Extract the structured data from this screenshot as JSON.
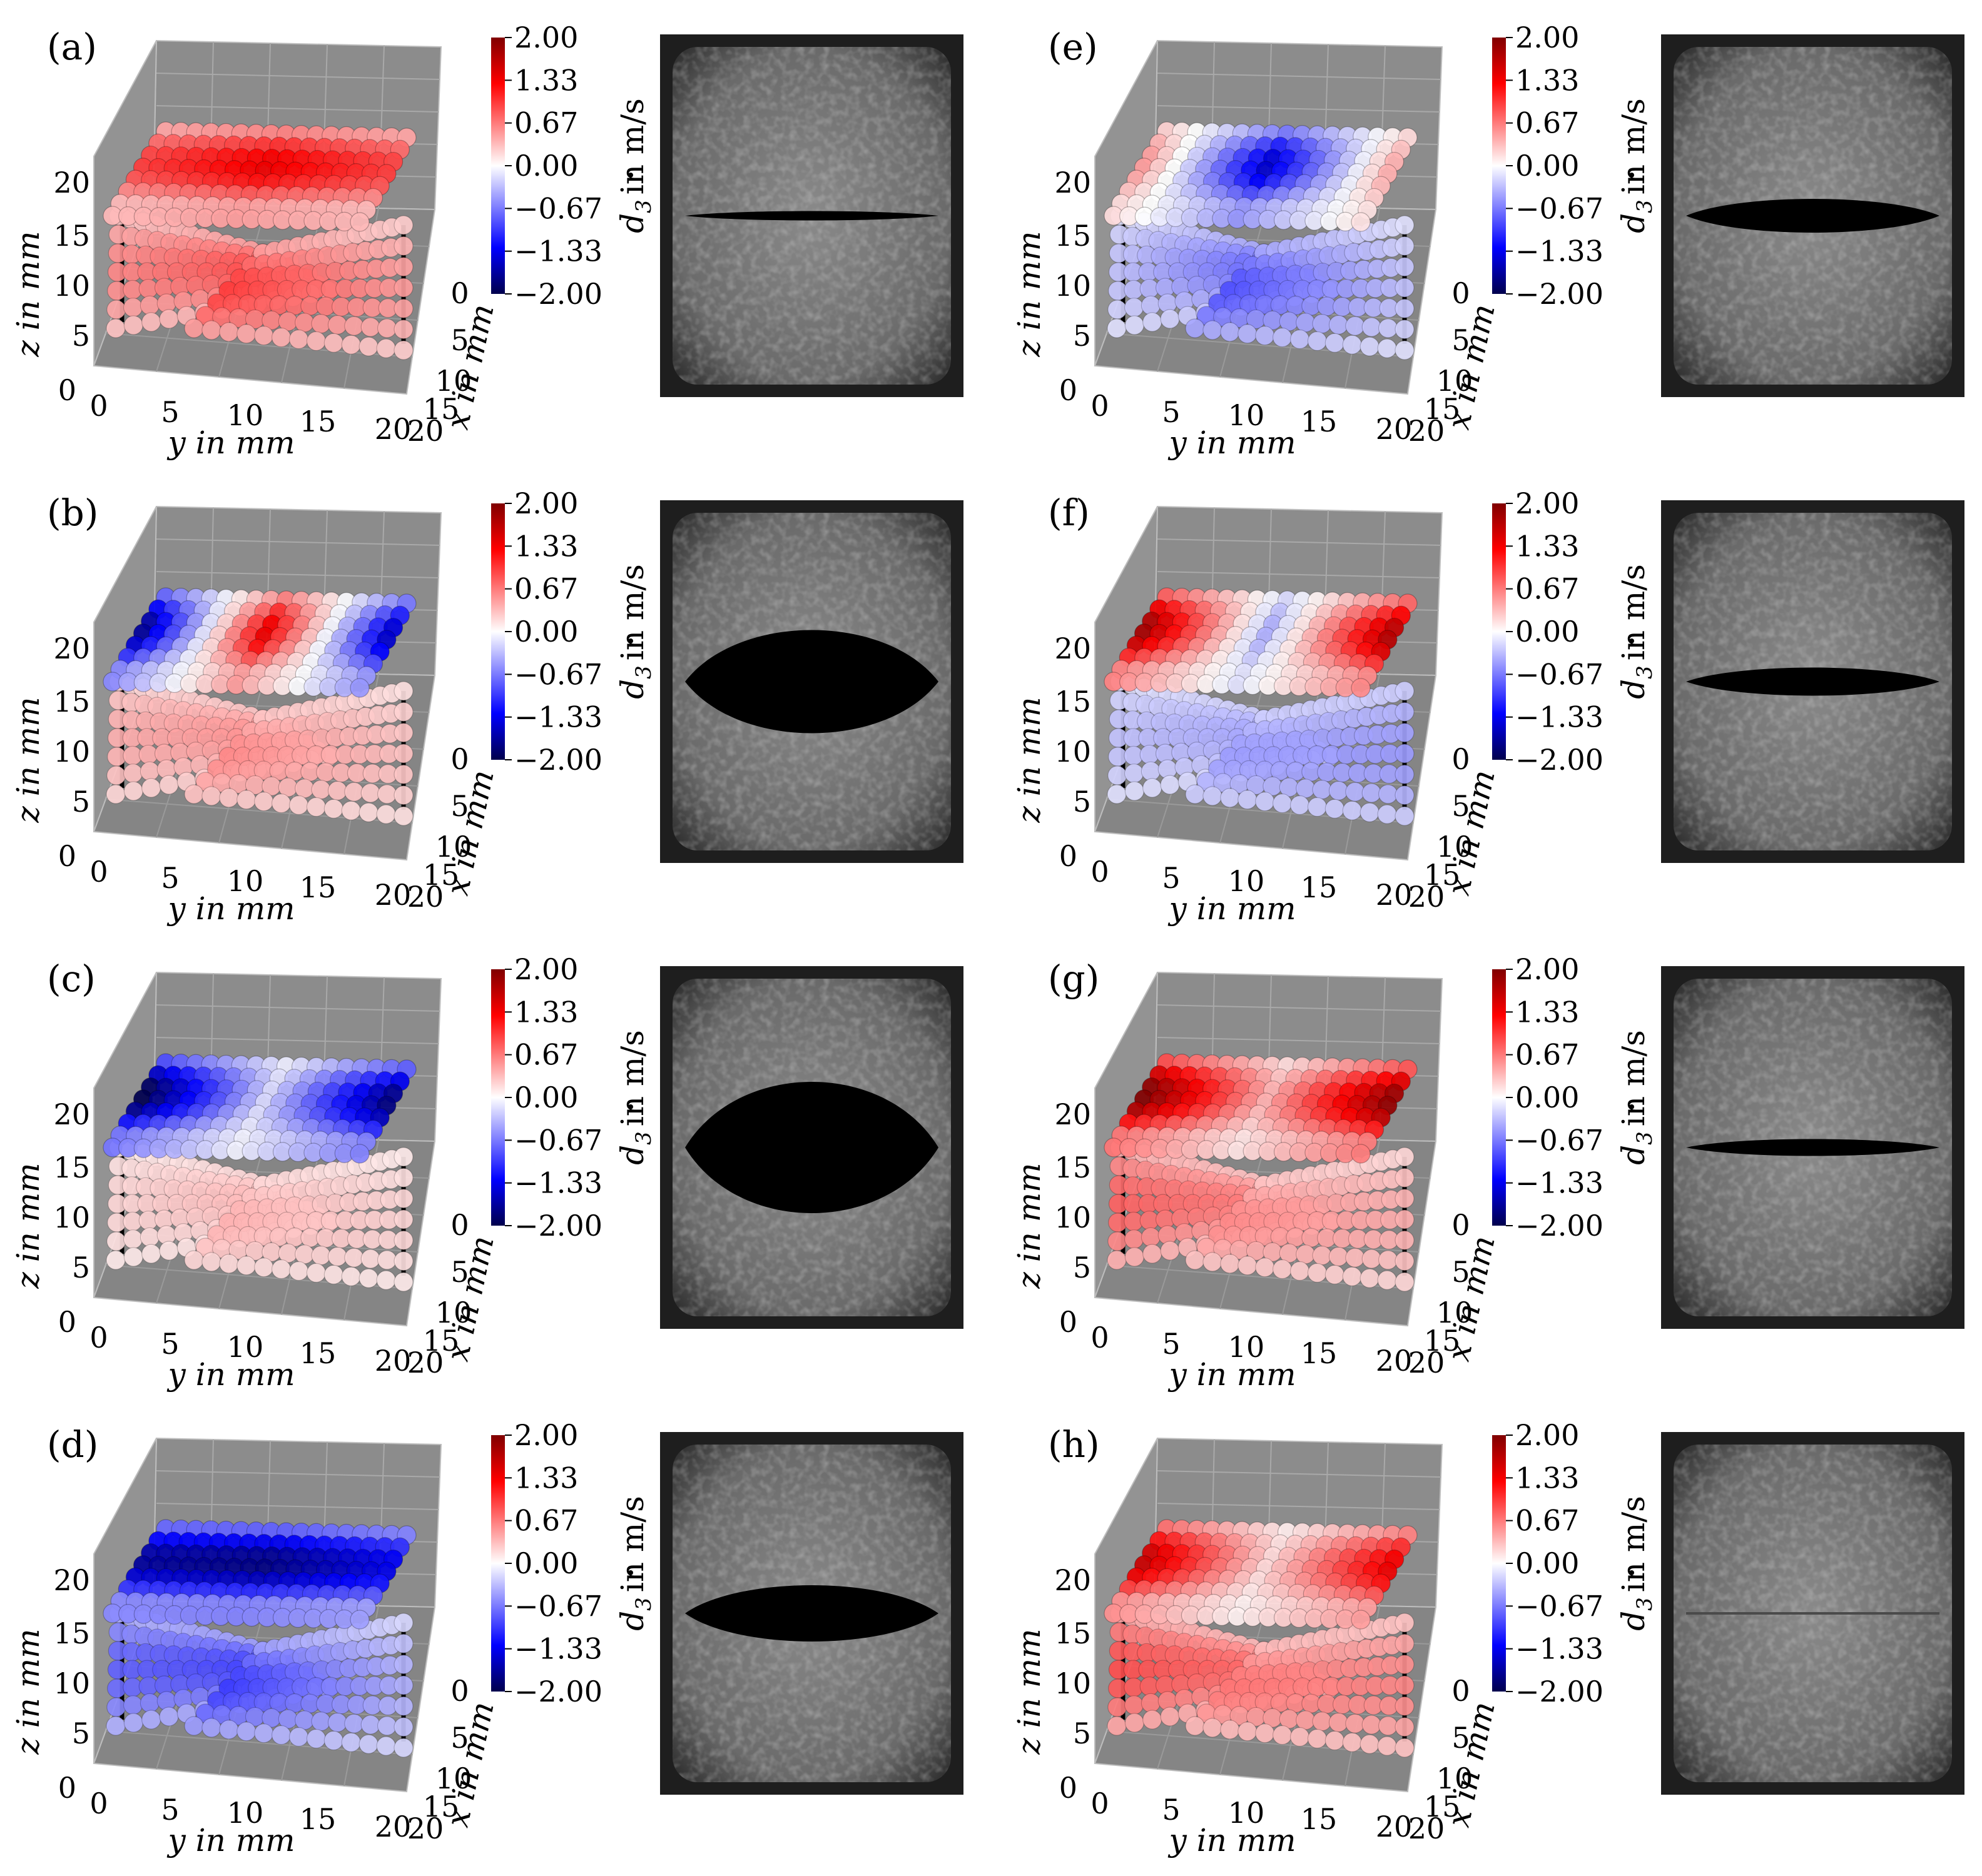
{
  "panel_labels": [
    "(a)",
    "(b)",
    "(c)",
    "(d)",
    "(e)",
    "(f)",
    "(g)",
    "(h)"
  ],
  "colorbar": {
    "label": "ḋ₃ in m/s",
    "label_main": "d",
    "label_sub": "3",
    "label_rest": "in m/s",
    "ticks": [
      "2.00",
      "1.33",
      "0.67",
      "0.00",
      "−0.67",
      "−1.33",
      "−2.00"
    ],
    "colormap": "seismic",
    "colors": {
      "max": "#800000",
      "pos": "#ff0000",
      "zero": "#ffffff",
      "neg": "#0000ff",
      "min": "#00004c"
    }
  },
  "axes3d": {
    "xlabel": "x in mm",
    "ylabel": "y in mm",
    "zlabel": "z in mm",
    "z_ticks": [
      "0",
      "5",
      "10",
      "15",
      "20"
    ],
    "y_ticks": [
      "0",
      "5",
      "10",
      "15",
      "20"
    ],
    "x_ticks": [
      "0",
      "5",
      "10",
      "15",
      "20"
    ],
    "pane_color": "#8c8c8c"
  },
  "chart_data": [
    {
      "type": "scatter",
      "panel": "(a)",
      "pattern": [
        0.5,
        0.7,
        0.5
      ],
      "lower_pattern": [
        0.3,
        0.5,
        0.25
      ]
    },
    {
      "type": "scatter",
      "panel": "(b)",
      "pattern": [
        -0.85,
        0.7,
        -0.75
      ],
      "lower_pattern": [
        0.2,
        0.3,
        0.15
      ]
    },
    {
      "type": "scatter",
      "panel": "(c)",
      "pattern": [
        -1.0,
        -0.1,
        -0.9
      ],
      "lower_pattern": [
        0.1,
        0.2,
        0.1
      ]
    },
    {
      "type": "scatter",
      "panel": "(d)",
      "pattern": [
        -0.85,
        -0.9,
        -0.7
      ],
      "lower_pattern": [
        -0.4,
        -0.5,
        -0.2
      ]
    },
    {
      "type": "scatter",
      "panel": "(e)",
      "pattern": [
        0.25,
        -0.75,
        0.2
      ],
      "lower_pattern": [
        -0.15,
        -0.45,
        -0.15
      ]
    },
    {
      "type": "scatter",
      "panel": "(f)",
      "pattern": [
        0.9,
        -0.2,
        0.85
      ],
      "lower_pattern": [
        -0.15,
        -0.25,
        -0.25
      ]
    },
    {
      "type": "scatter",
      "panel": "(g)",
      "pattern": [
        1.0,
        0.2,
        0.95
      ],
      "lower_pattern": [
        0.4,
        0.3,
        0.2
      ]
    },
    {
      "type": "scatter",
      "panel": "(h)",
      "pattern": [
        0.8,
        0.1,
        0.7
      ],
      "lower_pattern": [
        0.45,
        0.35,
        0.3
      ]
    }
  ],
  "photos": [
    {
      "panel": "(a)",
      "glottal_opening": 0.05
    },
    {
      "panel": "(b)",
      "glottal_opening": 0.55
    },
    {
      "panel": "(c)",
      "glottal_opening": 0.7
    },
    {
      "panel": "(d)",
      "glottal_opening": 0.3
    },
    {
      "panel": "(e)",
      "glottal_opening": 0.18
    },
    {
      "panel": "(f)",
      "glottal_opening": 0.15
    },
    {
      "panel": "(g)",
      "glottal_opening": 0.09
    },
    {
      "panel": "(h)",
      "glottal_opening": 0.0
    }
  ]
}
